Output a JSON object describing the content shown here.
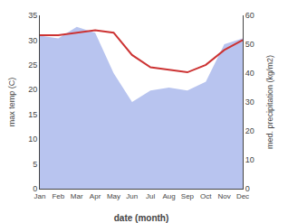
{
  "chart_data": {
    "type": "line",
    "xlabel": "date (month)",
    "ylabel": "max temp (C)",
    "y2label": "med. precipitation (kg/m2)",
    "categories": [
      "Jan",
      "Feb",
      "Mar",
      "Apr",
      "May",
      "Jun",
      "Jul",
      "Aug",
      "Sep",
      "Oct",
      "Nov",
      "Dec"
    ],
    "series": [
      {
        "type": "area",
        "color": "#b8c4ef",
        "axis": "y2",
        "values": [
          53,
          52,
          56,
          54,
          40,
          30,
          34,
          35,
          34,
          37,
          50,
          52
        ]
      },
      {
        "type": "line",
        "color": "#cc3333",
        "values": [
          31,
          31,
          31.5,
          32,
          31.5,
          27,
          24.5,
          24,
          23.5,
          25,
          28,
          30
        ]
      }
    ],
    "ylim": [
      0,
      35
    ],
    "yticks": [
      0,
      5,
      10,
      15,
      20,
      25,
      30,
      35
    ],
    "y2lim": [
      0,
      60
    ],
    "y2ticks": [
      0,
      10,
      20,
      30,
      40,
      50,
      60
    ],
    "grid": false
  }
}
